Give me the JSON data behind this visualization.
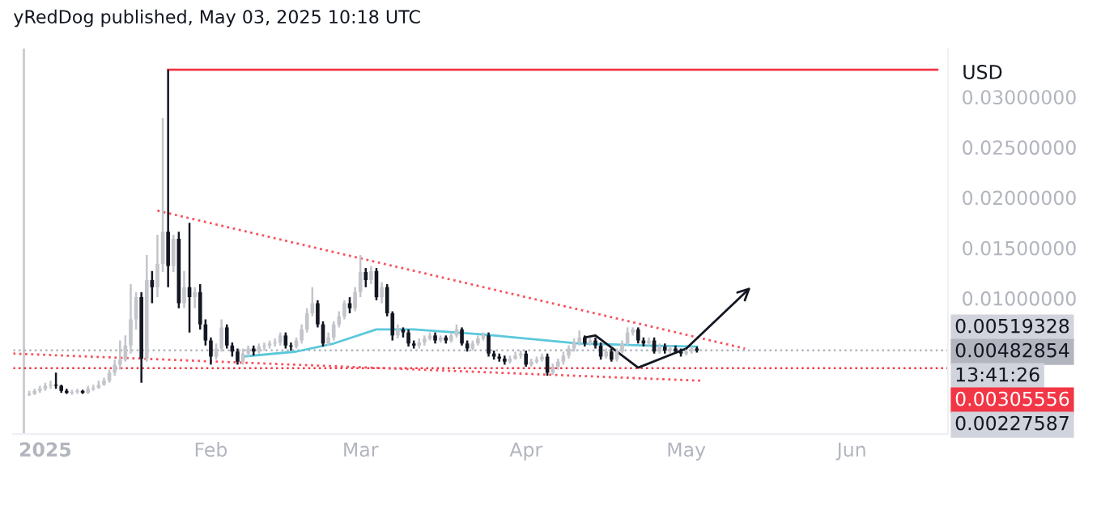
{
  "chart_data": {
    "type": "candlestick",
    "title": "yRedDog published, May 03, 2025 10:18 UTC",
    "ylabel": "USD",
    "xlim": [
      "2024-12-26",
      "2025-06-19"
    ],
    "xticks": [
      {
        "value": "2025-01-01",
        "label": "2025"
      },
      {
        "value": "2025-02-01",
        "label": "Feb"
      },
      {
        "value": "2025-03-01",
        "label": "Mar"
      },
      {
        "value": "2025-04-01",
        "label": "Apr"
      },
      {
        "value": "2025-05-01",
        "label": "May"
      },
      {
        "value": "2025-06-01",
        "label": "Jun"
      }
    ],
    "ylim": [
      -0.0035,
      0.0348
    ],
    "yticks": [
      {
        "value": 0.01,
        "label": "0.01000000"
      },
      {
        "value": 0.015,
        "label": "0.01500000"
      },
      {
        "value": 0.02,
        "label": "0.02000000"
      },
      {
        "value": 0.025,
        "label": "0.02500000"
      },
      {
        "value": 0.03,
        "label": "0.03000000"
      }
    ],
    "grid": false,
    "series": [
      {
        "type": "line",
        "color": "#f23645",
        "line_style": "solid",
        "x": [
          "2025-01-24",
          "2025-06-17"
        ],
        "values": [
          0.0327,
          0.0327
        ]
      },
      {
        "type": "line",
        "color": "#f7525f",
        "line_style": "dotted",
        "x": [
          "2025-01-22",
          "2025-05-12"
        ],
        "values": [
          0.0187,
          0.005
        ]
      },
      {
        "type": "line",
        "color": "#f7525f",
        "line_style": "dotted",
        "x": [
          "2024-12-26",
          "2025-05-04"
        ],
        "values": [
          0.0045,
          0.0018
        ]
      },
      {
        "type": "line",
        "color": "#5bc8db",
        "line_style": "solid",
        "x": [
          "2025-02-07",
          "2025-02-17",
          "2025-02-24",
          "2025-03-04",
          "2025-03-11",
          "2025-03-24",
          "2025-04-11",
          "2025-04-24",
          "2025-05-03"
        ],
        "values": [
          0.0042,
          0.0047,
          0.0055,
          0.0069,
          0.0069,
          0.0064,
          0.0055,
          0.0053,
          0.0052
        ]
      },
      {
        "type": "line",
        "color": "#131722",
        "line_style": "solid",
        "x": [
          "2025-04-12",
          "2025-04-14",
          "2025-04-22",
          "2025-05-01"
        ],
        "values": [
          0.0061,
          0.0063,
          0.0031,
          0.005
        ]
      },
      {
        "color": "#c3c5cb",
        "x": [
          "2024-12-29",
          "2024-12-30",
          "2024-12-31",
          "2025-01-01",
          "2025-01-02",
          "2025-01-06",
          "2025-01-07",
          "2025-01-09",
          "2025-01-10",
          "2025-01-11",
          "2025-01-12",
          "2025-01-13",
          "2025-01-14",
          "2025-01-15",
          "2025-01-16",
          "2025-01-17",
          "2025-01-18",
          "2025-01-20",
          "2025-01-22",
          "2025-01-23",
          "2025-01-25",
          "2025-01-27",
          "2025-01-29",
          "2025-02-02",
          "2025-02-03",
          "2025-02-07",
          "2025-02-08",
          "2025-02-10",
          "2025-02-11",
          "2025-02-12",
          "2025-02-13",
          "2025-02-14",
          "2025-02-17",
          "2025-02-18",
          "2025-02-19",
          "2025-02-20",
          "2025-02-23",
          "2025-02-24",
          "2025-02-25",
          "2025-02-26",
          "2025-02-28",
          "2025-03-01",
          "2025-03-03",
          "2025-03-05",
          "2025-03-08",
          "2025-03-12",
          "2025-03-13",
          "2025-03-14",
          "2025-03-16",
          "2025-03-18",
          "2025-03-19",
          "2025-03-22",
          "2025-03-23",
          "2025-03-24",
          "2025-03-29",
          "2025-03-30",
          "2025-03-31",
          "2025-04-02",
          "2025-04-03",
          "2025-04-04",
          "2025-04-06",
          "2025-04-07",
          "2025-04-08",
          "2025-04-09",
          "2025-04-10",
          "2025-04-11",
          "2025-04-13",
          "2025-04-16",
          "2025-04-18",
          "2025-04-19",
          "2025-04-20",
          "2025-04-21",
          "2025-04-24",
          "2025-04-26",
          "2025-04-28",
          "2025-05-01",
          "2025-05-02"
        ],
        "ohlc": [
          [
            0.0004,
            0.0008,
            0.0003,
            0.0005
          ],
          [
            0.0005,
            0.001,
            0.0004,
            0.0008
          ],
          [
            0.0008,
            0.0013,
            0.0006,
            0.001
          ],
          [
            0.001,
            0.0016,
            0.0008,
            0.0013
          ],
          [
            0.0013,
            0.0018,
            0.001,
            0.0014
          ],
          [
            0.0006,
            0.0009,
            0.0004,
            0.0007
          ],
          [
            0.0007,
            0.001,
            0.0005,
            0.0008
          ],
          [
            0.0006,
            0.0013,
            0.0005,
            0.001
          ],
          [
            0.001,
            0.0014,
            0.0008,
            0.0011
          ],
          [
            0.0011,
            0.0018,
            0.001,
            0.0014
          ],
          [
            0.0014,
            0.0021,
            0.0013,
            0.0018
          ],
          [
            0.0018,
            0.0029,
            0.0016,
            0.0026
          ],
          [
            0.0026,
            0.0039,
            0.0023,
            0.0034
          ],
          [
            0.0034,
            0.0058,
            0.0029,
            0.0039
          ],
          [
            0.0039,
            0.0063,
            0.0037,
            0.0053
          ],
          [
            0.0053,
            0.0114,
            0.0045,
            0.0079
          ],
          [
            0.0079,
            0.0106,
            0.0069,
            0.0101
          ],
          [
            0.004,
            0.0143,
            0.0037,
            0.0118
          ],
          [
            0.0111,
            0.0163,
            0.0101,
            0.0134
          ],
          [
            0.0134,
            0.0279,
            0.0126,
            0.0166
          ],
          [
            0.0132,
            0.0163,
            0.0126,
            0.0159
          ],
          [
            0.0095,
            0.0127,
            0.009,
            0.0111
          ],
          [
            0.0101,
            0.0111,
            0.009,
            0.0106
          ],
          [
            0.0042,
            0.0055,
            0.0039,
            0.005
          ],
          [
            0.005,
            0.0079,
            0.0047,
            0.0071
          ],
          [
            0.0037,
            0.005,
            0.0034,
            0.0045
          ],
          [
            0.0045,
            0.0053,
            0.0042,
            0.005
          ],
          [
            0.0047,
            0.0055,
            0.0045,
            0.0052
          ],
          [
            0.0052,
            0.0056,
            0.0048,
            0.0053
          ],
          [
            0.0053,
            0.0058,
            0.005,
            0.0055
          ],
          [
            0.0055,
            0.006,
            0.0052,
            0.0056
          ],
          [
            0.0056,
            0.0066,
            0.0053,
            0.0063
          ],
          [
            0.0052,
            0.0061,
            0.005,
            0.0058
          ],
          [
            0.0058,
            0.0074,
            0.0055,
            0.0069
          ],
          [
            0.0069,
            0.009,
            0.0066,
            0.0085
          ],
          [
            0.0085,
            0.0111,
            0.0082,
            0.0095
          ],
          [
            0.0055,
            0.0066,
            0.0053,
            0.0061
          ],
          [
            0.0061,
            0.0077,
            0.0058,
            0.0074
          ],
          [
            0.0074,
            0.0087,
            0.0071,
            0.0082
          ],
          [
            0.0082,
            0.0098,
            0.0079,
            0.0095
          ],
          [
            0.009,
            0.0111,
            0.0087,
            0.0106
          ],
          [
            0.0106,
            0.0143,
            0.0101,
            0.0126
          ],
          [
            0.0118,
            0.0132,
            0.0114,
            0.0127
          ],
          [
            0.0101,
            0.0116,
            0.0095,
            0.0111
          ],
          [
            0.0063,
            0.0074,
            0.006,
            0.0069
          ],
          [
            0.0053,
            0.006,
            0.005,
            0.0056
          ],
          [
            0.0056,
            0.0063,
            0.0053,
            0.006
          ],
          [
            0.006,
            0.0066,
            0.0058,
            0.0063
          ],
          [
            0.0058,
            0.0063,
            0.0056,
            0.0061
          ],
          [
            0.0058,
            0.0066,
            0.0056,
            0.0063
          ],
          [
            0.0063,
            0.0074,
            0.0061,
            0.0069
          ],
          [
            0.005,
            0.0058,
            0.0048,
            0.0055
          ],
          [
            0.0055,
            0.0063,
            0.0053,
            0.006
          ],
          [
            0.006,
            0.0066,
            0.0058,
            0.0063
          ],
          [
            0.0037,
            0.0043,
            0.0035,
            0.004
          ],
          [
            0.004,
            0.0047,
            0.0039,
            0.0043
          ],
          [
            0.0043,
            0.0048,
            0.004,
            0.0045
          ],
          [
            0.0034,
            0.004,
            0.0032,
            0.0037
          ],
          [
            0.0037,
            0.0042,
            0.0035,
            0.0039
          ],
          [
            0.0039,
            0.0045,
            0.0037,
            0.0042
          ],
          [
            0.0026,
            0.0035,
            0.0024,
            0.0032
          ],
          [
            0.0032,
            0.004,
            0.0029,
            0.0037
          ],
          [
            0.0037,
            0.0047,
            0.0034,
            0.0043
          ],
          [
            0.0043,
            0.0053,
            0.004,
            0.005
          ],
          [
            0.005,
            0.006,
            0.0047,
            0.0056
          ],
          [
            0.0056,
            0.0068,
            0.0053,
            0.0061
          ],
          [
            0.0055,
            0.0061,
            0.0053,
            0.0058
          ],
          [
            0.0042,
            0.005,
            0.004,
            0.0047
          ],
          [
            0.0039,
            0.005,
            0.0037,
            0.0047
          ],
          [
            0.0047,
            0.0058,
            0.0045,
            0.0055
          ],
          [
            0.0055,
            0.0071,
            0.0053,
            0.0066
          ],
          [
            0.0066,
            0.0071,
            0.0063,
            0.0069
          ],
          [
            0.0055,
            0.0061,
            0.0053,
            0.0058
          ],
          [
            0.0047,
            0.0055,
            0.0045,
            0.0052
          ],
          [
            0.0048,
            0.0053,
            0.0045,
            0.005
          ],
          [
            0.0045,
            0.005,
            0.0043,
            0.0047
          ],
          [
            0.0047,
            0.0052,
            0.0045,
            0.005
          ]
        ]
      },
      {
        "color": "#131722",
        "x": [
          "2025-01-03",
          "2025-01-04",
          "2025-01-05",
          "2025-01-08",
          "2025-01-19",
          "2025-01-21",
          "2025-01-24",
          "2025-01-26",
          "2025-01-28",
          "2025-01-30",
          "2025-01-31",
          "2025-02-01",
          "2025-02-04",
          "2025-02-05",
          "2025-02-06",
          "2025-02-09",
          "2025-02-15",
          "2025-02-16",
          "2025-02-21",
          "2025-02-22",
          "2025-02-27",
          "2025-03-02",
          "2025-03-04",
          "2025-03-06",
          "2025-03-07",
          "2025-03-09",
          "2025-03-10",
          "2025-03-11",
          "2025-03-15",
          "2025-03-17",
          "2025-03-20",
          "2025-03-21",
          "2025-03-25",
          "2025-03-26",
          "2025-03-27",
          "2025-03-28",
          "2025-04-01",
          "2025-04-05",
          "2025-04-12",
          "2025-04-14",
          "2025-04-15",
          "2025-04-17",
          "2025-04-22",
          "2025-04-23",
          "2025-04-25",
          "2025-04-27",
          "2025-04-29",
          "2025-04-30",
          "2025-05-03"
        ],
        "ohlc": [
          [
            0.0014,
            0.0026,
            0.001,
            0.0013
          ],
          [
            0.0013,
            0.0014,
            0.0006,
            0.0008
          ],
          [
            0.0008,
            0.001,
            0.0005,
            0.0006
          ],
          [
            0.0008,
            0.0009,
            0.0005,
            0.0006
          ],
          [
            0.0101,
            0.0106,
            0.0016,
            0.004
          ],
          [
            0.0118,
            0.0127,
            0.0095,
            0.0111
          ],
          [
            0.0166,
            0.0327,
            0.0111,
            0.0132
          ],
          [
            0.0159,
            0.0166,
            0.009,
            0.0095
          ],
          [
            0.0111,
            0.0175,
            0.0066,
            0.0101
          ],
          [
            0.0106,
            0.0114,
            0.0069,
            0.0074
          ],
          [
            0.0074,
            0.0079,
            0.0053,
            0.0058
          ],
          [
            0.0058,
            0.0061,
            0.0034,
            0.0042
          ],
          [
            0.0071,
            0.0074,
            0.005,
            0.0053
          ],
          [
            0.0053,
            0.0056,
            0.0042,
            0.0047
          ],
          [
            0.0047,
            0.005,
            0.0034,
            0.0037
          ],
          [
            0.005,
            0.0053,
            0.0043,
            0.0047
          ],
          [
            0.0063,
            0.0066,
            0.005,
            0.0053
          ],
          [
            0.0053,
            0.0056,
            0.0048,
            0.0052
          ],
          [
            0.0095,
            0.0098,
            0.0071,
            0.0074
          ],
          [
            0.0074,
            0.0077,
            0.0052,
            0.0055
          ],
          [
            0.0095,
            0.0101,
            0.0085,
            0.009
          ],
          [
            0.0126,
            0.013,
            0.0111,
            0.0118
          ],
          [
            0.0127,
            0.013,
            0.0098,
            0.0101
          ],
          [
            0.0111,
            0.0114,
            0.0082,
            0.0085
          ],
          [
            0.0085,
            0.0087,
            0.0058,
            0.0063
          ],
          [
            0.0069,
            0.0071,
            0.0061,
            0.0066
          ],
          [
            0.0066,
            0.0069,
            0.0052,
            0.0055
          ],
          [
            0.0055,
            0.0058,
            0.005,
            0.0053
          ],
          [
            0.0063,
            0.0066,
            0.0055,
            0.0058
          ],
          [
            0.0061,
            0.0063,
            0.0055,
            0.0058
          ],
          [
            0.0069,
            0.0071,
            0.0053,
            0.0055
          ],
          [
            0.0055,
            0.0058,
            0.0047,
            0.005
          ],
          [
            0.0063,
            0.0066,
            0.0042,
            0.0045
          ],
          [
            0.0045,
            0.0048,
            0.0039,
            0.0042
          ],
          [
            0.0042,
            0.0045,
            0.0037,
            0.004
          ],
          [
            0.004,
            0.0043,
            0.0034,
            0.0037
          ],
          [
            0.0045,
            0.0048,
            0.0032,
            0.0034
          ],
          [
            0.0042,
            0.0045,
            0.0023,
            0.0026
          ],
          [
            0.0061,
            0.0063,
            0.0052,
            0.0055
          ],
          [
            0.0058,
            0.0061,
            0.005,
            0.0053
          ],
          [
            0.0053,
            0.0056,
            0.0039,
            0.0042
          ],
          [
            0.0047,
            0.005,
            0.0037,
            0.0039
          ],
          [
            0.0069,
            0.0071,
            0.0055,
            0.0058
          ],
          [
            0.0058,
            0.0061,
            0.0052,
            0.0055
          ],
          [
            0.0058,
            0.0061,
            0.0045,
            0.0047
          ],
          [
            0.0052,
            0.0055,
            0.0045,
            0.0048
          ],
          [
            0.005,
            0.0053,
            0.0045,
            0.0047
          ],
          [
            0.0047,
            0.005,
            0.0042,
            0.0045
          ],
          [
            0.005,
            0.0052,
            0.0046,
            0.0048
          ]
        ]
      }
    ],
    "ref_lines": [
      {
        "axis": "x",
        "value": "2024-12-28",
        "color": "#c8cad0",
        "line_style": "solid"
      },
      {
        "axis": "y",
        "value": 0.00482854,
        "label": "0.00482854",
        "color": "#b2b5be",
        "line_style": "dotted"
      },
      {
        "axis": "y",
        "value": 0.00305556,
        "label": "0.00305556",
        "color": "#f23645",
        "line_style": "dotted"
      }
    ],
    "annotations": [
      "0.00519328",
      "13:41:26",
      "0.00227587"
    ]
  }
}
